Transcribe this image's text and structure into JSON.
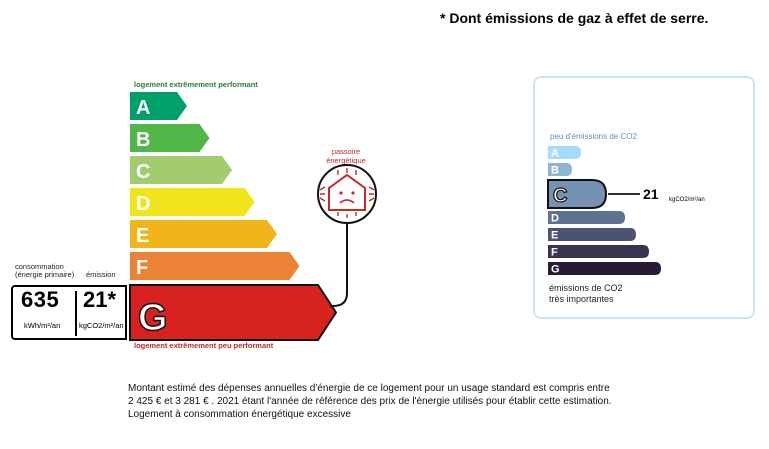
{
  "header": {
    "ghg_note": "* Dont émissions de gaz à effet de serre."
  },
  "energy_label": {
    "top_caption": "logement extrêmement performant",
    "bottom_caption": "logement extrêmement peu performant",
    "classes": [
      {
        "letter": "A",
        "color": "#00a06d"
      },
      {
        "letter": "B",
        "color": "#50b748"
      },
      {
        "letter": "C",
        "color": "#a2cc6e"
      },
      {
        "letter": "D",
        "color": "#f0e41b"
      },
      {
        "letter": "E",
        "color": "#f0b51b"
      },
      {
        "letter": "F",
        "color": "#eb8235"
      },
      {
        "letter": "G",
        "color": "#d7221f"
      }
    ],
    "current_class": "G",
    "consumption": {
      "label_1": "consommation",
      "label_2": "(énergie primaire)",
      "value": "635",
      "unit": "kWh/m²/an"
    },
    "emission": {
      "label": "émission",
      "value": "21*",
      "unit": "kgCO2/m²/an"
    },
    "passoire": {
      "line_1": "passoire",
      "line_2": "énergétique",
      "icon": "sad-house-icon"
    }
  },
  "ges_label": {
    "top_caption": "peu d'émissions de CO2",
    "bottom_caption_1": "émissions de CO2",
    "bottom_caption_2": "très importantes",
    "classes": [
      {
        "letter": "A",
        "color": "#a4dbf8"
      },
      {
        "letter": "B",
        "color": "#8cb4d3"
      },
      {
        "letter": "C",
        "color": "#7692b1"
      },
      {
        "letter": "D",
        "color": "#5f7290"
      },
      {
        "letter": "E",
        "color": "#4d5271"
      },
      {
        "letter": "F",
        "color": "#393551"
      },
      {
        "letter": "G",
        "color": "#281b35"
      }
    ],
    "current_class": "C",
    "value": "21",
    "unit": "kgCO2/m²/an"
  },
  "footer": {
    "line_1": "Montant estimé des dépenses annuelles d'énergie de ce logement pour un usage standard est compris entre",
    "line_2": "2 425 € et 3 281 € . 2021 étant l'année de référence des prix de l'énergie utilisés pour établir cette estimation.",
    "line_3": "Logement à consommation énergétique excessive"
  }
}
